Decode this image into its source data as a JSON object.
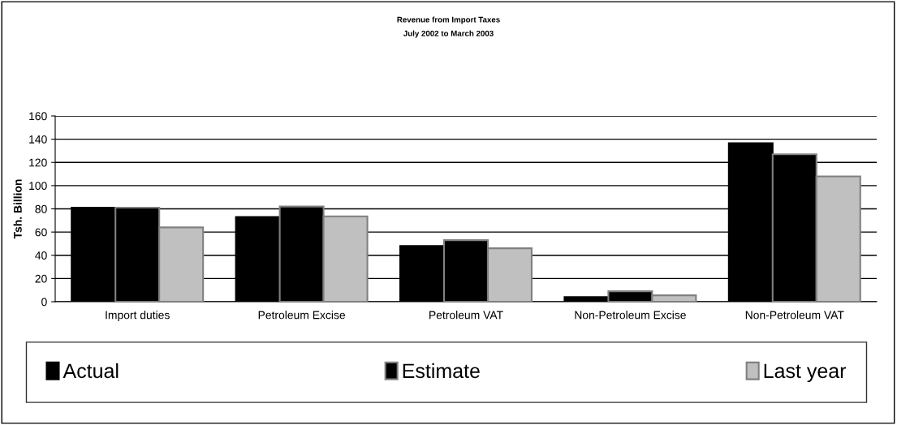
{
  "chart_data": {
    "type": "bar",
    "title": "Revenue from Import Taxes",
    "subtitle": "July 2002 to March 2003",
    "ylabel": "Tsh. Billion",
    "categories": [
      "Import duties",
      "Petroleum Excise",
      "Petroleum VAT",
      "Non-Petroleum Excise",
      "Non-Petroleum VAT"
    ],
    "series": [
      {
        "name": "Actual",
        "color": "#000000",
        "values": [
          81,
          73,
          48,
          4,
          136.5
        ]
      },
      {
        "name": "Estimate",
        "color": "#000000",
        "values": [
          81,
          82,
          53,
          9,
          127
        ]
      },
      {
        "name": "Last year",
        "color": "#c0c0c0",
        "values": [
          64,
          73.5,
          46,
          5.5,
          108
        ]
      }
    ],
    "ylim": [
      0,
      160
    ],
    "yticks": [
      0,
      20,
      40,
      60,
      80,
      100,
      120,
      140,
      160
    ],
    "grid": "y",
    "legend": "bottom"
  }
}
